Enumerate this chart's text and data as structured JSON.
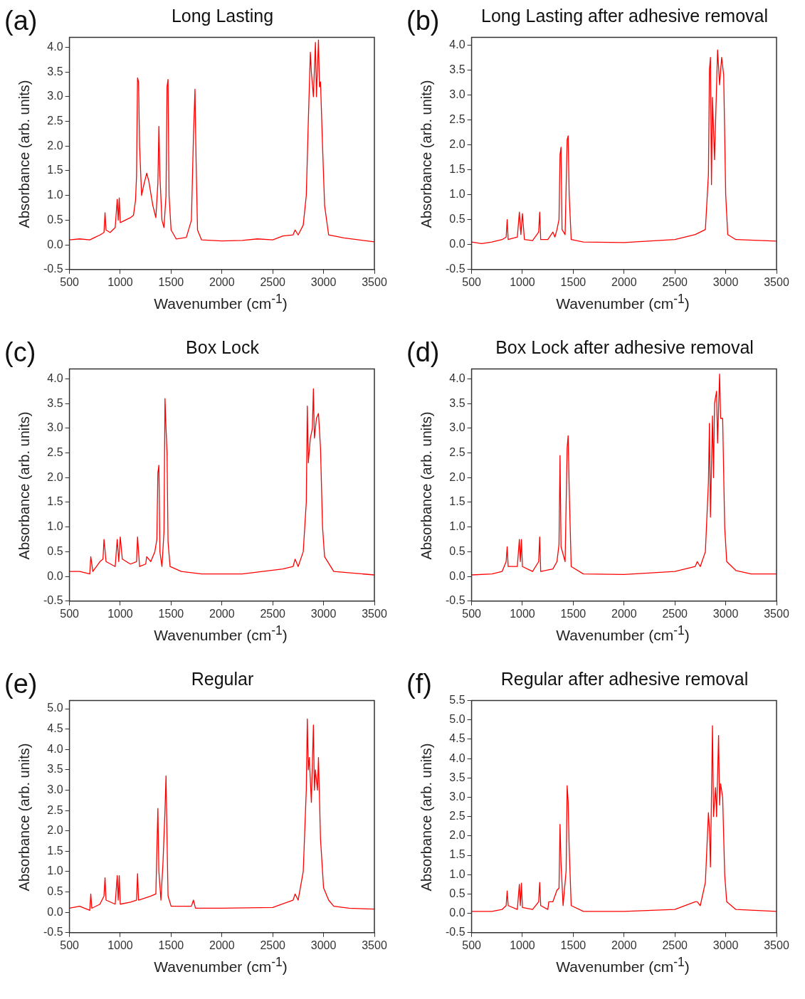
{
  "chart_data": [
    {
      "type": "line",
      "title": "Long Lasting",
      "xlabel": "Wavenumber (cm$^{-1}$)",
      "ylabel": "Absorbance (arb. units)",
      "annotations": [
        "(a)"
      ],
      "xlim": [
        500,
        3500
      ],
      "xticks": [
        500,
        1000,
        1500,
        2000,
        2500,
        3000,
        3500
      ],
      "ylim": [
        -0.5,
        4.2
      ],
      "yticks": [
        {
          "value": -0.5,
          "label": "-0.5"
        },
        {
          "value": 0,
          "label": "0.0"
        },
        {
          "value": 0.5,
          "label": "0.5"
        },
        {
          "value": 1,
          "label": "1.0"
        },
        {
          "value": 1.5,
          "label": "1.5"
        },
        {
          "value": 2,
          "label": "2.0"
        },
        {
          "value": 2.5,
          "label": "2.5"
        },
        {
          "value": 3,
          "label": "3.0"
        },
        {
          "value": 3.5,
          "label": "3.5"
        },
        {
          "value": 4,
          "label": "4.0"
        }
      ],
      "x": [
        500,
        600,
        700,
        750,
        800,
        840,
        850,
        860,
        900,
        950,
        970,
        980,
        990,
        1000,
        1050,
        1100,
        1130,
        1150,
        1160,
        1170,
        1180,
        1190,
        1210,
        1230,
        1260,
        1280,
        1320,
        1350,
        1370,
        1380,
        1390,
        1410,
        1430,
        1450,
        1460,
        1470,
        1480,
        1500,
        1550,
        1650,
        1700,
        1720,
        1735,
        1745,
        1760,
        1800,
        2000,
        2200,
        2350,
        2500,
        2600,
        2700,
        2720,
        2750,
        2800,
        2830,
        2850,
        2870,
        2880,
        2900,
        2920,
        2930,
        2950,
        2960,
        2970,
        2990,
        3010,
        3050,
        3200,
        3500
      ],
      "series": [
        {
          "color": "#ff0000",
          "values": [
            0.1,
            0.12,
            0.1,
            0.15,
            0.2,
            0.25,
            0.65,
            0.3,
            0.25,
            0.35,
            0.92,
            0.5,
            0.95,
            0.45,
            0.5,
            0.55,
            0.6,
            0.9,
            1.4,
            3.38,
            3.3,
            2.0,
            1.0,
            1.2,
            1.45,
            1.3,
            0.8,
            0.55,
            1.25,
            2.4,
            1.4,
            0.5,
            0.35,
            1.0,
            3.2,
            3.35,
            1.0,
            0.3,
            0.12,
            0.15,
            0.5,
            2.2,
            3.15,
            1.8,
            0.3,
            0.1,
            0.08,
            0.09,
            0.12,
            0.1,
            0.18,
            0.2,
            0.3,
            0.2,
            0.4,
            1.0,
            2.5,
            3.9,
            3.5,
            3.0,
            4.1,
            3.0,
            4.15,
            3.2,
            3.3,
            2.0,
            0.8,
            0.2,
            0.14,
            0.06
          ]
        }
      ]
    },
    {
      "type": "line",
      "title": "Long Lasting after adhesive removal",
      "xlabel": "Wavenumber (cm$^{-1}$)",
      "ylabel": "Absorbance (arb. units)",
      "annotations": [
        "(b)"
      ],
      "xlim": [
        500,
        3500
      ],
      "xticks": [
        500,
        1000,
        1500,
        2000,
        2500,
        3000,
        3500
      ],
      "ylim": [
        -0.5,
        4.15
      ],
      "yticks": [
        {
          "value": -0.5,
          "label": "-0.5"
        },
        {
          "value": 0,
          "label": "0.0"
        },
        {
          "value": 0.5,
          "label": "0.5"
        },
        {
          "value": 1,
          "label": "1.0"
        },
        {
          "value": 1.5,
          "label": "1.5"
        },
        {
          "value": 2,
          "label": "2.0"
        },
        {
          "value": 2.5,
          "label": "2.5"
        },
        {
          "value": 3,
          "label": "3.0"
        },
        {
          "value": 3.5,
          "label": "3.5"
        },
        {
          "value": 4,
          "label": "4.0"
        }
      ],
      "x": [
        500,
        600,
        700,
        800,
        840,
        850,
        860,
        950,
        970,
        985,
        1000,
        1020,
        1100,
        1160,
        1170,
        1180,
        1250,
        1300,
        1320,
        1340,
        1360,
        1370,
        1380,
        1390,
        1420,
        1440,
        1450,
        1460,
        1480,
        1600,
        2000,
        2500,
        2700,
        2800,
        2830,
        2840,
        2850,
        2860,
        2870,
        2890,
        2920,
        2940,
        2960,
        2980,
        3000,
        3020,
        3100,
        3500
      ],
      "series": [
        {
          "color": "#ff0000",
          "values": [
            0.05,
            0.02,
            0.05,
            0.1,
            0.15,
            0.5,
            0.1,
            0.15,
            0.65,
            0.2,
            0.62,
            0.1,
            0.08,
            0.25,
            0.65,
            0.1,
            0.1,
            0.25,
            0.15,
            0.3,
            0.5,
            1.8,
            1.95,
            0.3,
            0.2,
            2.1,
            2.18,
            1.0,
            0.1,
            0.05,
            0.04,
            0.1,
            0.2,
            0.3,
            1.4,
            3.5,
            3.75,
            1.2,
            2.95,
            1.7,
            3.9,
            3.2,
            3.75,
            3.4,
            1.0,
            0.2,
            0.1,
            0.07
          ]
        }
      ]
    },
    {
      "type": "line",
      "title": "Box Lock",
      "xlabel": "Wavenumber (cm$^{-1}$)",
      "ylabel": "Absorbance (arb. units)",
      "annotations": [
        "(c)"
      ],
      "xlim": [
        500,
        3500
      ],
      "xticks": [
        500,
        1000,
        1500,
        2000,
        2500,
        3000,
        3500
      ],
      "ylim": [
        -0.5,
        4.2
      ],
      "yticks": [
        {
          "value": -0.5,
          "label": "-0.5"
        },
        {
          "value": 0,
          "label": "0.0"
        },
        {
          "value": 0.5,
          "label": "0.5"
        },
        {
          "value": 1,
          "label": "1.0"
        },
        {
          "value": 1.5,
          "label": "1.5"
        },
        {
          "value": 2,
          "label": "2.0"
        },
        {
          "value": 2.5,
          "label": "2.5"
        },
        {
          "value": 3,
          "label": "3.0"
        },
        {
          "value": 3.5,
          "label": "3.5"
        },
        {
          "value": 4,
          "label": "4.0"
        }
      ],
      "x": [
        500,
        600,
        700,
        710,
        730,
        800,
        830,
        840,
        860,
        950,
        970,
        985,
        1000,
        1020,
        1100,
        1160,
        1170,
        1190,
        1250,
        1260,
        1300,
        1340,
        1360,
        1370,
        1380,
        1390,
        1410,
        1430,
        1440,
        1450,
        1460,
        1470,
        1490,
        1600,
        1800,
        2200,
        2400,
        2600,
        2700,
        2720,
        2750,
        2800,
        2830,
        2840,
        2850,
        2870,
        2890,
        2900,
        2910,
        2930,
        2950,
        2970,
        2990,
        3010,
        3100,
        3500
      ],
      "series": [
        {
          "color": "#ff0000",
          "values": [
            0.1,
            0.1,
            0.05,
            0.4,
            0.1,
            0.3,
            0.35,
            0.75,
            0.3,
            0.2,
            0.75,
            0.3,
            0.8,
            0.35,
            0.25,
            0.3,
            0.8,
            0.2,
            0.25,
            0.4,
            0.3,
            0.5,
            0.75,
            2.1,
            2.25,
            0.5,
            0.2,
            0.9,
            3.6,
            3.0,
            2.5,
            0.7,
            0.2,
            0.1,
            0.05,
            0.05,
            0.1,
            0.15,
            0.2,
            0.35,
            0.2,
            0.5,
            1.5,
            3.45,
            2.3,
            2.8,
            3.0,
            3.8,
            2.8,
            3.2,
            3.3,
            2.6,
            1.0,
            0.4,
            0.1,
            0.03
          ]
        }
      ]
    },
    {
      "type": "line",
      "title": "Box Lock after adhesive removal",
      "xlabel": "Wavenumber (cm$^{-1}$)",
      "ylabel": "Absorbance (arb. units)",
      "annotations": [
        "(d)"
      ],
      "xlim": [
        500,
        3500
      ],
      "xticks": [
        500,
        1000,
        1500,
        2000,
        2500,
        3000,
        3500
      ],
      "ylim": [
        -0.5,
        4.2
      ],
      "yticks": [
        {
          "value": -0.5,
          "label": "-0.5"
        },
        {
          "value": 0,
          "label": "0.0"
        },
        {
          "value": 0.5,
          "label": "0.5"
        },
        {
          "value": 1,
          "label": "1.0"
        },
        {
          "value": 1.5,
          "label": "1.5"
        },
        {
          "value": 2,
          "label": "2.0"
        },
        {
          "value": 2.5,
          "label": "2.5"
        },
        {
          "value": 3,
          "label": "3.0"
        },
        {
          "value": 3.5,
          "label": "3.5"
        },
        {
          "value": 4,
          "label": "4.0"
        }
      ],
      "x": [
        500,
        700,
        800,
        840,
        850,
        860,
        950,
        970,
        980,
        990,
        1000,
        1100,
        1160,
        1170,
        1180,
        1300,
        1340,
        1360,
        1370,
        1380,
        1420,
        1440,
        1450,
        1460,
        1480,
        1600,
        2000,
        2500,
        2700,
        2720,
        2750,
        2800,
        2830,
        2840,
        2850,
        2870,
        2880,
        2890,
        2910,
        2920,
        2940,
        2950,
        2970,
        2990,
        3010,
        3100,
        3250,
        3500
      ],
      "series": [
        {
          "color": "#ff0000",
          "values": [
            0.03,
            0.05,
            0.1,
            0.3,
            0.6,
            0.2,
            0.2,
            0.75,
            0.3,
            0.75,
            0.2,
            0.1,
            0.3,
            0.8,
            0.1,
            0.15,
            0.3,
            0.65,
            2.45,
            0.6,
            0.3,
            2.6,
            2.85,
            1.8,
            0.2,
            0.05,
            0.04,
            0.1,
            0.2,
            0.3,
            0.2,
            0.5,
            1.9,
            3.1,
            1.2,
            3.25,
            2.0,
            3.5,
            3.75,
            2.7,
            4.1,
            3.2,
            3.2,
            1.0,
            0.3,
            0.12,
            0.05,
            0.05
          ]
        }
      ]
    },
    {
      "type": "line",
      "title": "Regular",
      "xlabel": "Wavenumber (cm$^{-1}$)",
      "ylabel": "Absorbance (arb. units)",
      "annotations": [
        "(e)"
      ],
      "xlim": [
        500,
        3500
      ],
      "xticks": [
        500,
        1000,
        1500,
        2000,
        2500,
        3000,
        3500
      ],
      "ylim": [
        -0.5,
        5.2
      ],
      "yticks": [
        {
          "value": -0.5,
          "label": "-0.5"
        },
        {
          "value": 0,
          "label": "0.0"
        },
        {
          "value": 0.5,
          "label": "0.5"
        },
        {
          "value": 1,
          "label": "1.0"
        },
        {
          "value": 1.5,
          "label": "1.5"
        },
        {
          "value": 2,
          "label": "2.0"
        },
        {
          "value": 2.5,
          "label": "2.5"
        },
        {
          "value": 3,
          "label": "3.0"
        },
        {
          "value": 3.5,
          "label": "3.5"
        },
        {
          "value": 4,
          "label": "4.0"
        },
        {
          "value": 4.5,
          "label": "4.5"
        },
        {
          "value": 5,
          "label": "5.0"
        }
      ],
      "x": [
        500,
        600,
        700,
        710,
        720,
        800,
        840,
        850,
        860,
        950,
        970,
        980,
        990,
        1000,
        1100,
        1160,
        1170,
        1180,
        1300,
        1350,
        1370,
        1380,
        1400,
        1420,
        1440,
        1450,
        1460,
        1470,
        1500,
        1700,
        1720,
        1740,
        2000,
        2500,
        2700,
        2720,
        2750,
        2800,
        2830,
        2840,
        2850,
        2860,
        2880,
        2900,
        2910,
        2920,
        2940,
        2950,
        2970,
        3000,
        3050,
        3100,
        3250,
        3500
      ],
      "series": [
        {
          "color": "#ff0000",
          "values": [
            0.1,
            0.15,
            0.05,
            0.45,
            0.1,
            0.2,
            0.4,
            0.85,
            0.3,
            0.2,
            0.9,
            0.3,
            0.9,
            0.2,
            0.25,
            0.3,
            0.95,
            0.3,
            0.4,
            0.45,
            2.55,
            1.0,
            0.3,
            1.2,
            2.5,
            3.35,
            1.8,
            0.4,
            0.15,
            0.15,
            0.3,
            0.1,
            0.1,
            0.12,
            0.3,
            0.45,
            0.3,
            1.0,
            3.0,
            4.75,
            3.5,
            3.8,
            2.7,
            4.6,
            3.0,
            3.5,
            3.0,
            3.8,
            1.8,
            0.6,
            0.3,
            0.15,
            0.1,
            0.08
          ]
        }
      ]
    },
    {
      "type": "line",
      "title": "Regular after adhesive removal",
      "xlabel": "Wavenumber (cm$^{-1}$)",
      "ylabel": "Absorbance (arb. units)",
      "annotations": [
        "(f)"
      ],
      "xlim": [
        500,
        3500
      ],
      "xticks": [
        500,
        1000,
        1500,
        2000,
        2500,
        3000,
        3500
      ],
      "ylim": [
        -0.5,
        5.5
      ],
      "yticks": [
        {
          "value": -0.5,
          "label": "-0.5"
        },
        {
          "value": 0,
          "label": "0.0"
        },
        {
          "value": 0.5,
          "label": "0.5"
        },
        {
          "value": 1,
          "label": "1.0"
        },
        {
          "value": 1.5,
          "label": "1.5"
        },
        {
          "value": 2,
          "label": "2.0"
        },
        {
          "value": 2.5,
          "label": "2.5"
        },
        {
          "value": 3,
          "label": "3.0"
        },
        {
          "value": 3.5,
          "label": "3.5"
        },
        {
          "value": 4,
          "label": "4.0"
        },
        {
          "value": 4.5,
          "label": "4.5"
        },
        {
          "value": 5,
          "label": "5.0"
        },
        {
          "value": 5.5,
          "label": "5.5"
        }
      ],
      "x": [
        500,
        700,
        800,
        840,
        850,
        860,
        950,
        970,
        980,
        990,
        1000,
        1100,
        1160,
        1170,
        1180,
        1250,
        1260,
        1300,
        1340,
        1360,
        1370,
        1380,
        1400,
        1430,
        1440,
        1450,
        1460,
        1480,
        1600,
        2000,
        2500,
        2700,
        2720,
        2750,
        2800,
        2830,
        2840,
        2850,
        2870,
        2880,
        2900,
        2910,
        2930,
        2940,
        2950,
        2970,
        2990,
        3010,
        3100,
        3500
      ],
      "series": [
        {
          "color": "#ff0000",
          "values": [
            0.05,
            0.05,
            0.1,
            0.2,
            0.58,
            0.2,
            0.1,
            0.75,
            0.2,
            0.78,
            0.15,
            0.1,
            0.3,
            0.8,
            0.2,
            0.1,
            0.3,
            0.3,
            0.6,
            0.65,
            2.3,
            1.3,
            0.2,
            1.1,
            3.3,
            2.9,
            1.7,
            0.2,
            0.05,
            0.05,
            0.1,
            0.3,
            0.3,
            0.2,
            0.8,
            2.6,
            2.2,
            1.2,
            4.85,
            2.5,
            3.25,
            2.5,
            4.6,
            2.8,
            3.35,
            3.0,
            1.0,
            0.3,
            0.1,
            0.05
          ]
        }
      ]
    }
  ]
}
